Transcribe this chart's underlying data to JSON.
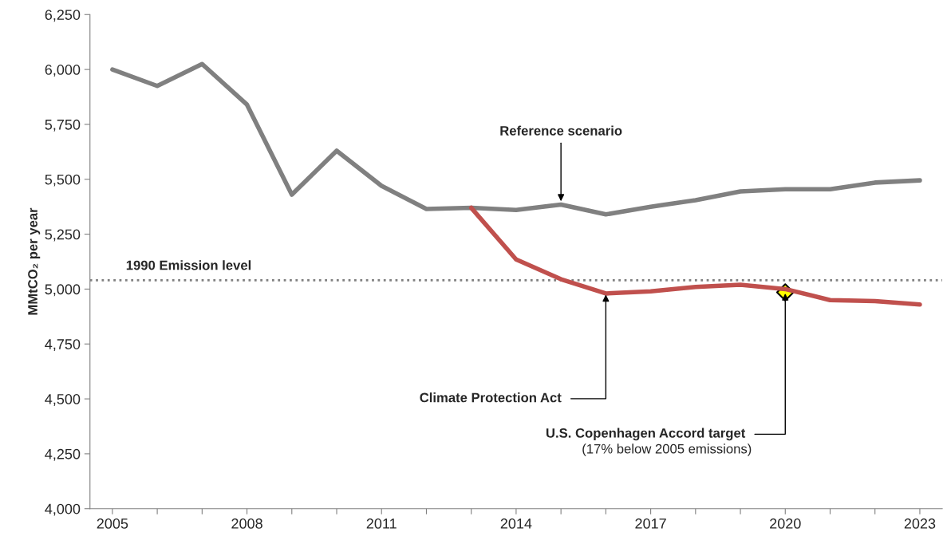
{
  "chart_data": {
    "type": "line",
    "ylabel": "MMtCO₂ per year",
    "x": [
      2005,
      2006,
      2007,
      2008,
      2009,
      2010,
      2011,
      2012,
      2013,
      2014,
      2015,
      2016,
      2017,
      2018,
      2019,
      2020,
      2021,
      2022,
      2023
    ],
    "series": [
      {
        "color": "#808080",
        "values": [
          6000,
          5925,
          6025,
          5840,
          5430,
          5630,
          5470,
          5365,
          5370,
          5360,
          5385,
          5340,
          5375,
          5405,
          5445,
          5455,
          5455,
          5485,
          5495
        ]
      },
      {
        "color": "#c0504d",
        "values": [
          null,
          null,
          null,
          null,
          null,
          null,
          null,
          null,
          5370,
          5135,
          5045,
          4980,
          4990,
          5010,
          5020,
          5000,
          4950,
          4945,
          4930
        ]
      },
      {
        "type": "scatter",
        "marker": "diamond",
        "color": "#ffff00",
        "x": [
          2020
        ],
        "values": [
          4985
        ]
      }
    ],
    "ref_lines": [
      {
        "axis": "y",
        "value": 5040,
        "label": "1990 Emission level",
        "color": "#808080",
        "line_style": "dotted"
      }
    ],
    "annotations": [
      {
        "text": "Reference scenario",
        "x": 2015,
        "y": 5385
      },
      {
        "text": "Climate Protection Act",
        "x": 2016,
        "y": 4980
      },
      {
        "text": "U.S. Copenhagen Accord target",
        "x": 2020,
        "y": 4985
      },
      "(17% below 2005 emissions)"
    ],
    "xlim": [
      2004.5,
      2023.5
    ],
    "xticks": [
      2005,
      {
        "value": 2006,
        "label": null
      },
      {
        "value": 2007,
        "label": null
      },
      2008,
      {
        "value": 2009,
        "label": null
      },
      {
        "value": 2010,
        "label": null
      },
      2011,
      {
        "value": 2012,
        "label": null
      },
      {
        "value": 2013,
        "label": null
      },
      2014,
      {
        "value": 2015,
        "label": null
      },
      {
        "value": 2016,
        "label": null
      },
      2017,
      {
        "value": 2018,
        "label": null
      },
      {
        "value": 2019,
        "label": null
      },
      2020,
      {
        "value": 2021,
        "label": null
      },
      {
        "value": 2022,
        "label": null
      },
      2023
    ],
    "ylim": [
      4000,
      6250
    ],
    "yticks": [
      {
        "value": 4000,
        "label": "4,000"
      },
      {
        "value": 4250,
        "label": "4,250"
      },
      {
        "value": 4500,
        "label": "4,500"
      },
      {
        "value": 4750,
        "label": "4,750"
      },
      {
        "value": 5000,
        "label": "5,000"
      },
      {
        "value": 5250,
        "label": "5,250"
      },
      {
        "value": 5500,
        "label": "5,500"
      },
      {
        "value": 5750,
        "label": "5,750"
      },
      {
        "value": 6000,
        "label": "6,000"
      },
      {
        "value": 6250,
        "label": "6,250"
      }
    ],
    "grid": false,
    "legend": false
  }
}
